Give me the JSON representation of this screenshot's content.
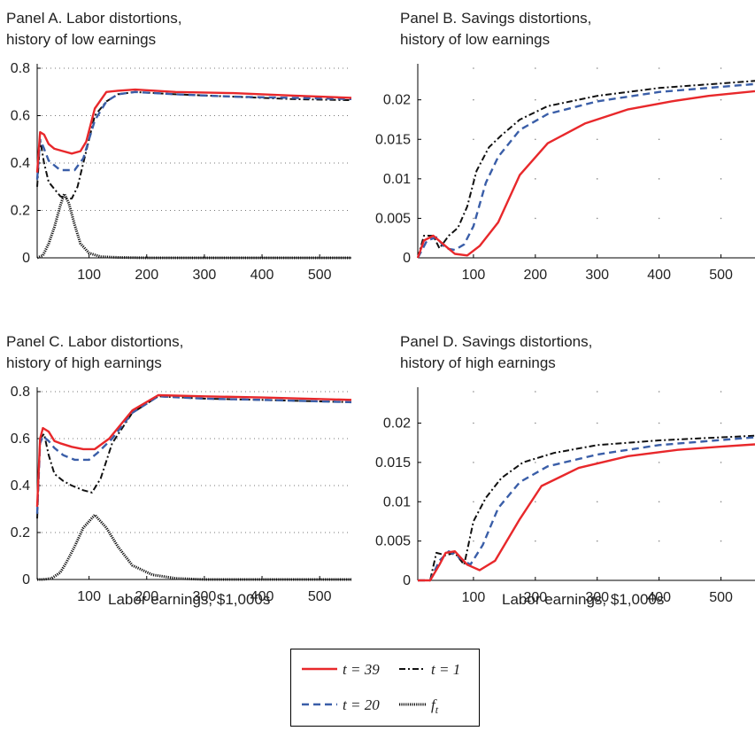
{
  "x_axis_label": "Labor earnings, $1,000s",
  "colors": {
    "t39": "#e8282b",
    "t20": "#3a5ea8",
    "t1": "#111111",
    "ft": "#111111"
  },
  "legend": {
    "t39": "t = 39",
    "t1": "t = 1",
    "t20": "t = 20",
    "ft": "f",
    "ft_sub": "t"
  },
  "chart_data": [
    {
      "type": "line",
      "title_line1": "Panel A. Labor distortions,",
      "title_line2": "history of low earnings",
      "xlabel": "",
      "ylabel": "",
      "xlim": [
        10,
        555
      ],
      "ylim": [
        0,
        0.8
      ],
      "xticks": [
        "100",
        "200",
        "300",
        "400",
        "500"
      ],
      "yticks": [
        "0",
        "0.2",
        "0.4",
        "0.6",
        "0.8"
      ],
      "grid": "horizontal dotted",
      "series": [
        {
          "key": "t39",
          "x": [
            10,
            15,
            22,
            30,
            40,
            55,
            70,
            85,
            95,
            110,
            130,
            150,
            180,
            250,
            350,
            450,
            555
          ],
          "y": [
            0.36,
            0.53,
            0.52,
            0.48,
            0.46,
            0.45,
            0.44,
            0.45,
            0.49,
            0.63,
            0.7,
            0.705,
            0.71,
            0.7,
            0.695,
            0.685,
            0.675
          ]
        },
        {
          "key": "t20",
          "x": [
            10,
            15,
            22,
            30,
            40,
            50,
            60,
            75,
            90,
            110,
            130,
            150,
            180,
            250,
            350,
            450,
            555
          ],
          "y": [
            0.33,
            0.5,
            0.46,
            0.41,
            0.39,
            0.37,
            0.37,
            0.37,
            0.42,
            0.58,
            0.66,
            0.69,
            0.7,
            0.69,
            0.68,
            0.675,
            0.67
          ]
        },
        {
          "key": "t1",
          "x": [
            10,
            15,
            22,
            30,
            40,
            50,
            60,
            70,
            80,
            95,
            110,
            130,
            150,
            180,
            250,
            350,
            450,
            555
          ],
          "y": [
            0.3,
            0.5,
            0.4,
            0.32,
            0.29,
            0.26,
            0.25,
            0.25,
            0.3,
            0.45,
            0.6,
            0.66,
            0.69,
            0.7,
            0.69,
            0.68,
            0.67,
            0.665
          ]
        },
        {
          "key": "ft",
          "x": [
            10,
            20,
            30,
            40,
            50,
            57,
            65,
            75,
            85,
            100,
            120,
            150,
            200,
            300,
            400,
            555
          ],
          "y": [
            0.0,
            0.01,
            0.06,
            0.13,
            0.22,
            0.27,
            0.23,
            0.14,
            0.06,
            0.02,
            0.005,
            0.002,
            0.0,
            0.0,
            0.0,
            0.0
          ]
        }
      ]
    },
    {
      "type": "line",
      "title_line1": "Panel B. Savings distortions,",
      "title_line2": "history of low earnings",
      "xlabel": "",
      "ylabel": "",
      "xlim": [
        10,
        555
      ],
      "ylim": [
        0,
        0.024
      ],
      "xticks": [
        "100",
        "200",
        "300",
        "400",
        "500"
      ],
      "yticks": [
        "0",
        "0.005",
        "0.01",
        "0.015",
        "0.02"
      ],
      "grid": "sparse dots",
      "series": [
        {
          "key": "t39",
          "x": [
            10,
            20,
            35,
            50,
            70,
            90,
            110,
            140,
            175,
            220,
            280,
            350,
            420,
            480,
            555
          ],
          "y": [
            0.0,
            0.0022,
            0.0028,
            0.0018,
            0.0005,
            0.0003,
            0.0015,
            0.0045,
            0.0105,
            0.0145,
            0.017,
            0.0188,
            0.0198,
            0.0205,
            0.0211
          ]
        },
        {
          "key": "t20",
          "x": [
            10,
            25,
            40,
            55,
            70,
            85,
            100,
            120,
            140,
            175,
            220,
            300,
            400,
            555
          ],
          "y": [
            0.0,
            0.0022,
            0.0026,
            0.0012,
            0.001,
            0.0017,
            0.004,
            0.0095,
            0.0128,
            0.0162,
            0.0182,
            0.0198,
            0.021,
            0.022
          ]
        },
        {
          "key": "t1",
          "x": [
            10,
            20,
            35,
            45,
            60,
            75,
            90,
            105,
            125,
            145,
            175,
            220,
            300,
            400,
            555
          ],
          "y": [
            0.0,
            0.0028,
            0.0028,
            0.0012,
            0.0028,
            0.0038,
            0.0065,
            0.011,
            0.014,
            0.0155,
            0.0175,
            0.0192,
            0.0205,
            0.0215,
            0.0224
          ]
        }
      ]
    },
    {
      "type": "line",
      "title_line1": "Panel C. Labor distortions,",
      "title_line2": "history of high earnings",
      "xlabel": "",
      "ylabel": "",
      "xlim": [
        10,
        555
      ],
      "ylim": [
        0,
        0.8
      ],
      "xticks": [
        "100",
        "200",
        "300",
        "400",
        "500"
      ],
      "yticks": [
        "0",
        "0.2",
        "0.4",
        "0.6",
        "0.8"
      ],
      "grid": "horizontal dotted",
      "series": [
        {
          "key": "t39",
          "x": [
            10,
            15,
            20,
            30,
            40,
            50,
            70,
            90,
            110,
            135,
            175,
            220,
            300,
            400,
            555
          ],
          "y": [
            0.31,
            0.6,
            0.645,
            0.63,
            0.59,
            0.58,
            0.565,
            0.555,
            0.555,
            0.6,
            0.72,
            0.785,
            0.78,
            0.775,
            0.765
          ]
        },
        {
          "key": "t20",
          "x": [
            10,
            15,
            20,
            30,
            40,
            55,
            75,
            100,
            115,
            140,
            175,
            220,
            300,
            400,
            555
          ],
          "y": [
            0.28,
            0.58,
            0.61,
            0.59,
            0.56,
            0.53,
            0.51,
            0.51,
            0.54,
            0.6,
            0.71,
            0.78,
            0.77,
            0.765,
            0.755
          ]
        },
        {
          "key": "t1",
          "x": [
            10,
            15,
            22,
            30,
            40,
            55,
            70,
            90,
            105,
            120,
            140,
            175,
            220,
            300,
            400,
            555
          ],
          "y": [
            0.26,
            0.6,
            0.62,
            0.53,
            0.45,
            0.42,
            0.4,
            0.38,
            0.37,
            0.43,
            0.58,
            0.71,
            0.78,
            0.77,
            0.765,
            0.755
          ]
        },
        {
          "key": "ft",
          "x": [
            10,
            20,
            35,
            50,
            60,
            75,
            90,
            110,
            130,
            150,
            175,
            210,
            250,
            300,
            400,
            555
          ],
          "y": [
            0.0,
            0.0,
            0.005,
            0.03,
            0.07,
            0.14,
            0.22,
            0.275,
            0.22,
            0.14,
            0.06,
            0.02,
            0.005,
            0.0,
            0.0,
            0.0
          ]
        }
      ]
    },
    {
      "type": "line",
      "title_line1": "Panel D. Savings distortions,",
      "title_line2": "history of high earnings",
      "xlabel": "",
      "ylabel": "",
      "xlim": [
        10,
        555
      ],
      "ylim": [
        0,
        0.024
      ],
      "xticks": [
        "100",
        "200",
        "300",
        "400",
        "500"
      ],
      "yticks": [
        "0",
        "0.005",
        "0.01",
        "0.015",
        "0.02"
      ],
      "grid": "sparse dots",
      "series": [
        {
          "key": "t39",
          "x": [
            10,
            30,
            45,
            55,
            70,
            90,
            110,
            135,
            175,
            210,
            270,
            350,
            430,
            500,
            555
          ],
          "y": [
            0.0,
            0.0,
            0.002,
            0.0035,
            0.0037,
            0.002,
            0.0013,
            0.0025,
            0.0078,
            0.012,
            0.0143,
            0.0158,
            0.0166,
            0.017,
            0.0173
          ]
        },
        {
          "key": "t20",
          "x": [
            10,
            30,
            45,
            60,
            75,
            95,
            115,
            140,
            175,
            220,
            300,
            400,
            555
          ],
          "y": [
            0.0,
            0.0,
            0.0025,
            0.0037,
            0.003,
            0.002,
            0.0045,
            0.0092,
            0.0125,
            0.0145,
            0.016,
            0.0172,
            0.0182
          ]
        },
        {
          "key": "t1",
          "x": [
            10,
            30,
            40,
            55,
            70,
            85,
            100,
            120,
            145,
            180,
            230,
            300,
            400,
            555
          ],
          "y": [
            0.0,
            0.0,
            0.0035,
            0.0032,
            0.0035,
            0.002,
            0.0075,
            0.0105,
            0.013,
            0.015,
            0.0162,
            0.0172,
            0.0178,
            0.0184
          ]
        }
      ]
    }
  ]
}
